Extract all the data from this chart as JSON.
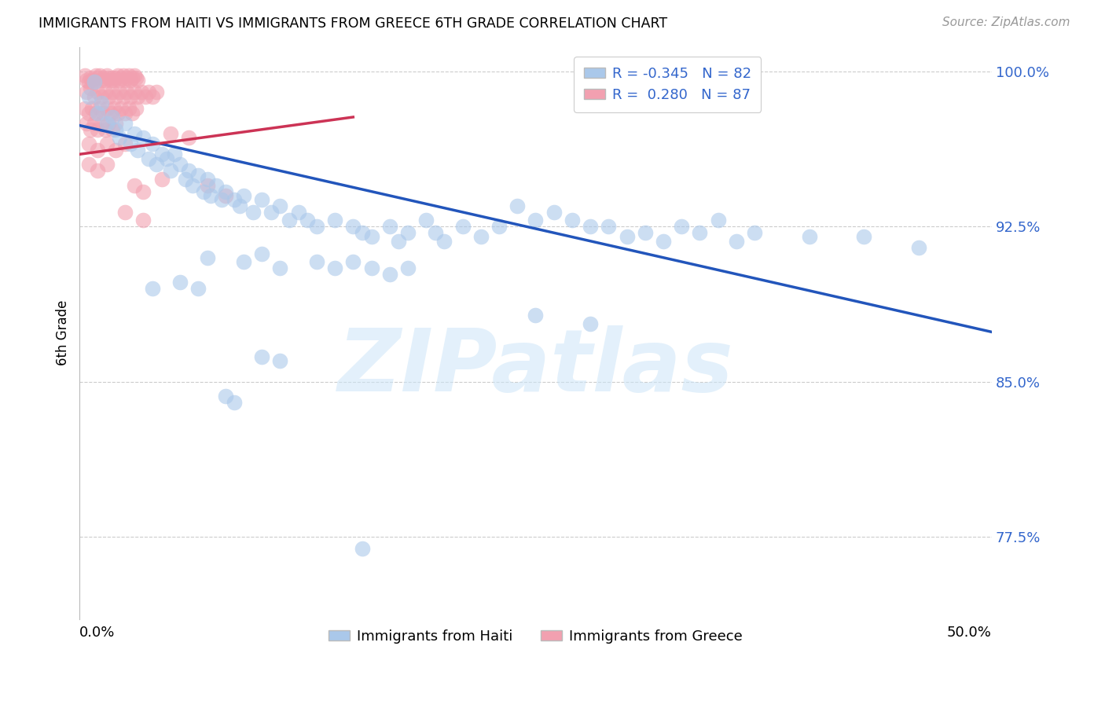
{
  "title": "IMMIGRANTS FROM HAITI VS IMMIGRANTS FROM GREECE 6TH GRADE CORRELATION CHART",
  "source": "Source: ZipAtlas.com",
  "ylabel": "6th Grade",
  "yticks": [
    77.5,
    85.0,
    92.5,
    100.0
  ],
  "xlim": [
    0.0,
    0.5
  ],
  "ylim": [
    0.735,
    1.012
  ],
  "haiti_color": "#aac8ea",
  "greece_color": "#f2a0b0",
  "haiti_line_color": "#2255bb",
  "greece_line_color": "#cc3355",
  "watermark": "ZIPatlas",
  "haiti_R": -0.345,
  "haiti_N": 82,
  "greece_R": 0.28,
  "greece_N": 87,
  "haiti_line_x0": 0.0,
  "haiti_line_y0": 0.974,
  "haiti_line_x1": 0.5,
  "haiti_line_y1": 0.874,
  "greece_line_x0": 0.0,
  "greece_line_y0": 0.96,
  "greece_line_x1": 0.15,
  "greece_line_y1": 0.978,
  "haiti_scatter": [
    [
      0.005,
      0.988
    ],
    [
      0.008,
      0.995
    ],
    [
      0.01,
      0.98
    ],
    [
      0.012,
      0.985
    ],
    [
      0.015,
      0.975
    ],
    [
      0.018,
      0.978
    ],
    [
      0.02,
      0.972
    ],
    [
      0.022,
      0.968
    ],
    [
      0.025,
      0.975
    ],
    [
      0.028,
      0.965
    ],
    [
      0.03,
      0.97
    ],
    [
      0.032,
      0.962
    ],
    [
      0.035,
      0.968
    ],
    [
      0.038,
      0.958
    ],
    [
      0.04,
      0.965
    ],
    [
      0.042,
      0.955
    ],
    [
      0.045,
      0.96
    ],
    [
      0.048,
      0.958
    ],
    [
      0.05,
      0.952
    ],
    [
      0.052,
      0.96
    ],
    [
      0.055,
      0.955
    ],
    [
      0.058,
      0.948
    ],
    [
      0.06,
      0.952
    ],
    [
      0.062,
      0.945
    ],
    [
      0.065,
      0.95
    ],
    [
      0.068,
      0.942
    ],
    [
      0.07,
      0.948
    ],
    [
      0.072,
      0.94
    ],
    [
      0.075,
      0.945
    ],
    [
      0.078,
      0.938
    ],
    [
      0.08,
      0.942
    ],
    [
      0.085,
      0.938
    ],
    [
      0.088,
      0.935
    ],
    [
      0.09,
      0.94
    ],
    [
      0.095,
      0.932
    ],
    [
      0.1,
      0.938
    ],
    [
      0.105,
      0.932
    ],
    [
      0.11,
      0.935
    ],
    [
      0.115,
      0.928
    ],
    [
      0.12,
      0.932
    ],
    [
      0.125,
      0.928
    ],
    [
      0.13,
      0.925
    ],
    [
      0.14,
      0.928
    ],
    [
      0.15,
      0.925
    ],
    [
      0.155,
      0.922
    ],
    [
      0.16,
      0.92
    ],
    [
      0.17,
      0.925
    ],
    [
      0.175,
      0.918
    ],
    [
      0.18,
      0.922
    ],
    [
      0.19,
      0.928
    ],
    [
      0.195,
      0.922
    ],
    [
      0.2,
      0.918
    ],
    [
      0.21,
      0.925
    ],
    [
      0.22,
      0.92
    ],
    [
      0.23,
      0.925
    ],
    [
      0.24,
      0.935
    ],
    [
      0.25,
      0.928
    ],
    [
      0.26,
      0.932
    ],
    [
      0.27,
      0.928
    ],
    [
      0.28,
      0.925
    ],
    [
      0.29,
      0.925
    ],
    [
      0.3,
      0.92
    ],
    [
      0.31,
      0.922
    ],
    [
      0.32,
      0.918
    ],
    [
      0.33,
      0.925
    ],
    [
      0.34,
      0.922
    ],
    [
      0.35,
      0.928
    ],
    [
      0.36,
      0.918
    ],
    [
      0.37,
      0.922
    ],
    [
      0.4,
      0.92
    ],
    [
      0.43,
      0.92
    ],
    [
      0.46,
      0.915
    ],
    [
      0.07,
      0.91
    ],
    [
      0.09,
      0.908
    ],
    [
      0.1,
      0.912
    ],
    [
      0.11,
      0.905
    ],
    [
      0.13,
      0.908
    ],
    [
      0.14,
      0.905
    ],
    [
      0.15,
      0.908
    ],
    [
      0.16,
      0.905
    ],
    [
      0.17,
      0.902
    ],
    [
      0.18,
      0.905
    ],
    [
      0.04,
      0.895
    ],
    [
      0.055,
      0.898
    ],
    [
      0.065,
      0.895
    ],
    [
      0.1,
      0.862
    ],
    [
      0.11,
      0.86
    ],
    [
      0.25,
      0.882
    ],
    [
      0.28,
      0.878
    ],
    [
      0.08,
      0.843
    ],
    [
      0.085,
      0.84
    ],
    [
      0.155,
      0.769
    ]
  ],
  "greece_scatter": [
    [
      0.003,
      0.998
    ],
    [
      0.004,
      0.996
    ],
    [
      0.005,
      0.995
    ],
    [
      0.006,
      0.997
    ],
    [
      0.007,
      0.996
    ],
    [
      0.008,
      0.995
    ],
    [
      0.009,
      0.998
    ],
    [
      0.01,
      0.997
    ],
    [
      0.011,
      0.998
    ],
    [
      0.012,
      0.996
    ],
    [
      0.013,
      0.997
    ],
    [
      0.014,
      0.996
    ],
    [
      0.015,
      0.998
    ],
    [
      0.016,
      0.997
    ],
    [
      0.017,
      0.996
    ],
    [
      0.018,
      0.997
    ],
    [
      0.019,
      0.996
    ],
    [
      0.02,
      0.997
    ],
    [
      0.021,
      0.998
    ],
    [
      0.022,
      0.996
    ],
    [
      0.023,
      0.997
    ],
    [
      0.024,
      0.998
    ],
    [
      0.025,
      0.996
    ],
    [
      0.026,
      0.997
    ],
    [
      0.027,
      0.998
    ],
    [
      0.028,
      0.996
    ],
    [
      0.029,
      0.997
    ],
    [
      0.03,
      0.998
    ],
    [
      0.031,
      0.997
    ],
    [
      0.032,
      0.996
    ],
    [
      0.004,
      0.99
    ],
    [
      0.006,
      0.992
    ],
    [
      0.008,
      0.988
    ],
    [
      0.01,
      0.99
    ],
    [
      0.012,
      0.988
    ],
    [
      0.014,
      0.99
    ],
    [
      0.016,
      0.988
    ],
    [
      0.018,
      0.99
    ],
    [
      0.02,
      0.988
    ],
    [
      0.022,
      0.99
    ],
    [
      0.024,
      0.988
    ],
    [
      0.026,
      0.99
    ],
    [
      0.028,
      0.988
    ],
    [
      0.03,
      0.99
    ],
    [
      0.032,
      0.988
    ],
    [
      0.034,
      0.99
    ],
    [
      0.036,
      0.988
    ],
    [
      0.038,
      0.99
    ],
    [
      0.04,
      0.988
    ],
    [
      0.042,
      0.99
    ],
    [
      0.003,
      0.982
    ],
    [
      0.005,
      0.98
    ],
    [
      0.007,
      0.982
    ],
    [
      0.009,
      0.98
    ],
    [
      0.011,
      0.982
    ],
    [
      0.013,
      0.98
    ],
    [
      0.015,
      0.982
    ],
    [
      0.017,
      0.98
    ],
    [
      0.019,
      0.982
    ],
    [
      0.021,
      0.98
    ],
    [
      0.023,
      0.982
    ],
    [
      0.025,
      0.98
    ],
    [
      0.027,
      0.982
    ],
    [
      0.029,
      0.98
    ],
    [
      0.031,
      0.982
    ],
    [
      0.004,
      0.975
    ],
    [
      0.006,
      0.972
    ],
    [
      0.008,
      0.975
    ],
    [
      0.01,
      0.972
    ],
    [
      0.012,
      0.975
    ],
    [
      0.014,
      0.972
    ],
    [
      0.016,
      0.975
    ],
    [
      0.018,
      0.972
    ],
    [
      0.02,
      0.975
    ],
    [
      0.005,
      0.965
    ],
    [
      0.01,
      0.962
    ],
    [
      0.015,
      0.965
    ],
    [
      0.02,
      0.962
    ],
    [
      0.025,
      0.965
    ],
    [
      0.005,
      0.955
    ],
    [
      0.01,
      0.952
    ],
    [
      0.015,
      0.955
    ],
    [
      0.05,
      0.97
    ],
    [
      0.06,
      0.968
    ],
    [
      0.07,
      0.945
    ],
    [
      0.08,
      0.94
    ],
    [
      0.03,
      0.945
    ],
    [
      0.035,
      0.942
    ],
    [
      0.045,
      0.948
    ],
    [
      0.025,
      0.932
    ],
    [
      0.035,
      0.928
    ]
  ]
}
